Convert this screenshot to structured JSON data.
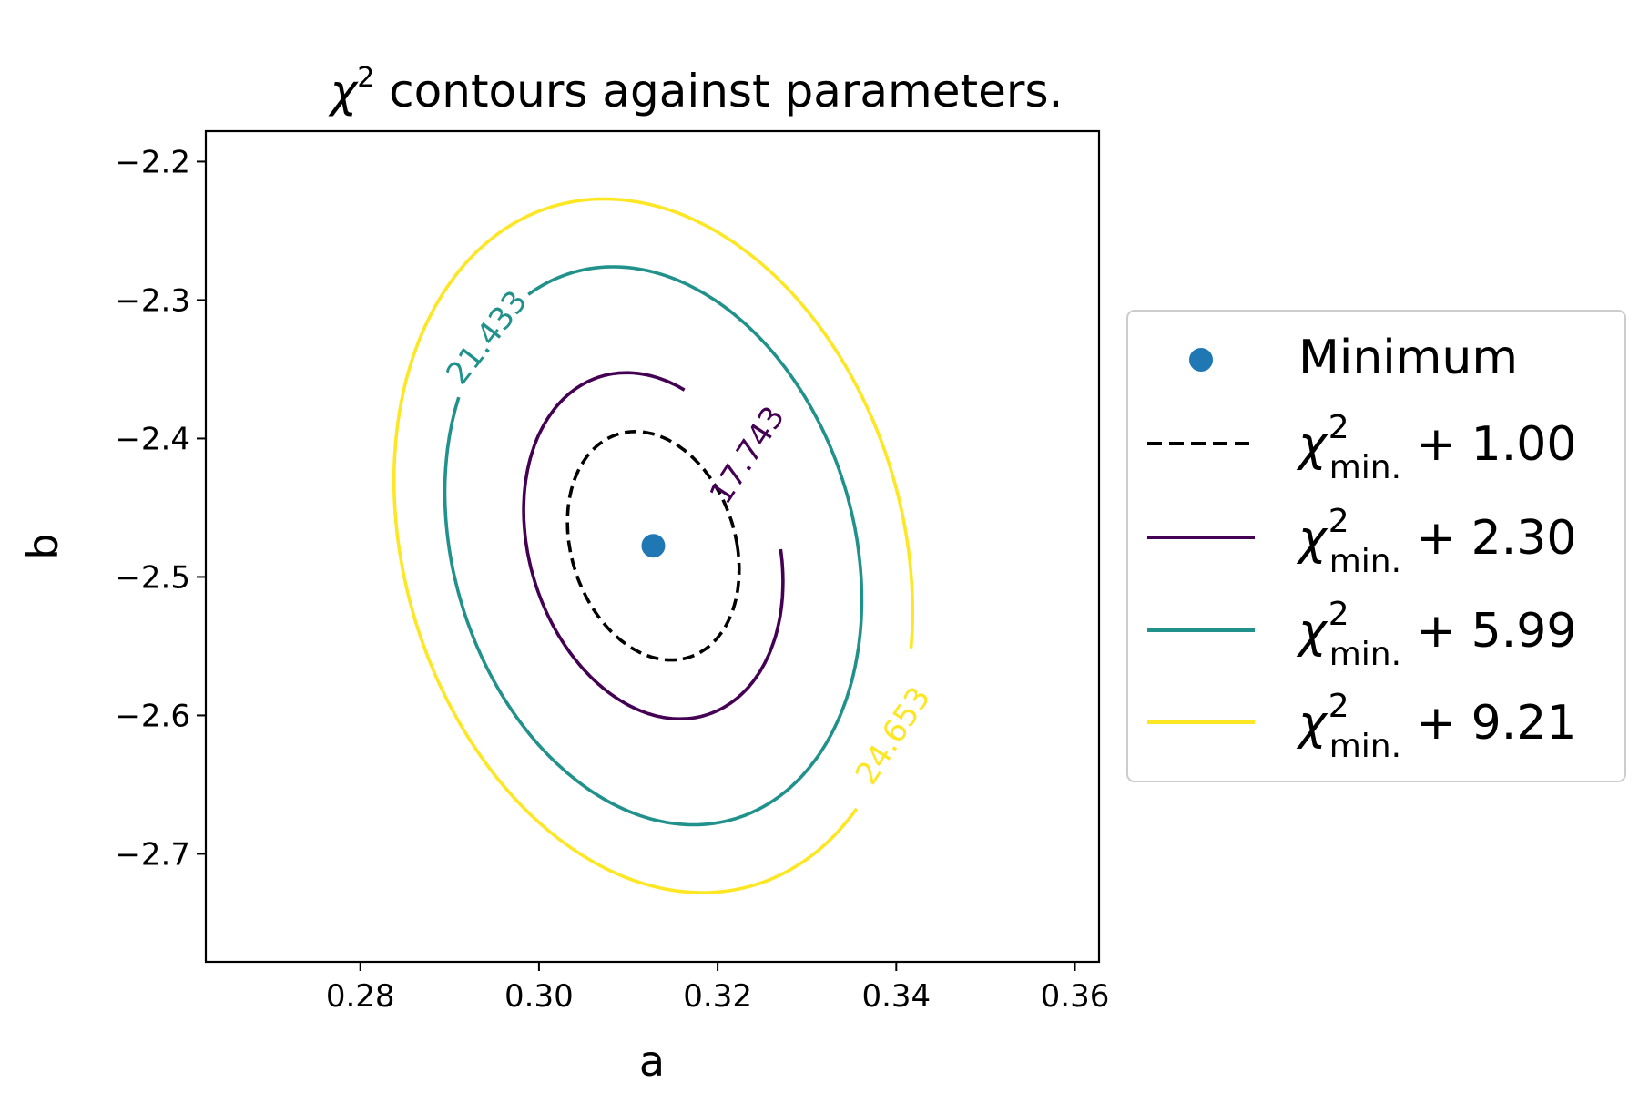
{
  "chart_data": {
    "type": "contour",
    "title": "χ² contours against parameters.",
    "title_parts": {
      "chi": "χ",
      "sup": "2",
      "rest": " contours against parameters."
    },
    "xlabel": "a",
    "ylabel": "b",
    "xlim": [
      0.2627,
      0.3627
    ],
    "ylim": [
      -2.778,
      -2.178
    ],
    "xticks": [
      {
        "value": 0.28,
        "label": "0.28"
      },
      {
        "value": 0.3,
        "label": "0.30"
      },
      {
        "value": 0.32,
        "label": "0.32"
      },
      {
        "value": 0.34,
        "label": "0.34"
      },
      {
        "value": 0.36,
        "label": "0.36"
      }
    ],
    "yticks": [
      {
        "value": -2.2,
        "label": "−2.2"
      },
      {
        "value": -2.3,
        "label": "−2.3"
      },
      {
        "value": -2.4,
        "label": "−2.4"
      },
      {
        "value": -2.5,
        "label": "−2.5"
      },
      {
        "value": -2.6,
        "label": "−2.6"
      },
      {
        "value": -2.7,
        "label": "−2.7"
      }
    ],
    "minimum": {
      "a": 0.3128,
      "b": -2.4775,
      "color": "#1f77b4"
    },
    "contours": [
      {
        "level_label": "",
        "legend": {
          "prefix": "χ",
          "sup": "2",
          "sub": "min.",
          "suffix": " + 1.00"
        },
        "color": "#000000",
        "dashed": true,
        "center_a": 0.3128,
        "center_b": -2.4775,
        "semi_a": 0.0094,
        "semi_b": 0.0825,
        "tilt": -0.002,
        "gap": null
      },
      {
        "level_label": "17.743",
        "legend": {
          "prefix": "χ",
          "sup": "2",
          "sub": "min.",
          "suffix": " + 2.30"
        },
        "color": "#440154",
        "dashed": false,
        "center_a": 0.3128,
        "center_b": -2.4775,
        "semi_a": 0.0142,
        "semi_b": 0.125,
        "tilt": -0.003,
        "gap": [
          -0.02,
          1.12
        ],
        "label_angle": -57
      },
      {
        "level_label": "21.433",
        "legend": {
          "prefix": "χ",
          "sup": "2",
          "sub": "min.",
          "suffix": " + 5.99"
        },
        "color": "#21918c",
        "dashed": false,
        "center_a": 0.3128,
        "center_b": -2.4775,
        "semi_a": 0.0229,
        "semi_b": 0.2015,
        "tilt": -0.0045,
        "gap": [
          2.02,
          2.58
        ],
        "label_angle": -52
      },
      {
        "level_label": "24.653",
        "legend": {
          "prefix": "χ",
          "sup": "2",
          "sub": "min.",
          "suffix": " + 9.21"
        },
        "color": "#fde725",
        "dashed": false,
        "center_a": 0.3128,
        "center_b": -2.4775,
        "semi_a": 0.0285,
        "semi_b": 0.2505,
        "tilt": -0.0055,
        "gap": [
          -0.86,
          -0.3
        ],
        "label_angle": -57
      }
    ],
    "legend": {
      "position": "right",
      "minimum_label": "Minimum"
    }
  }
}
